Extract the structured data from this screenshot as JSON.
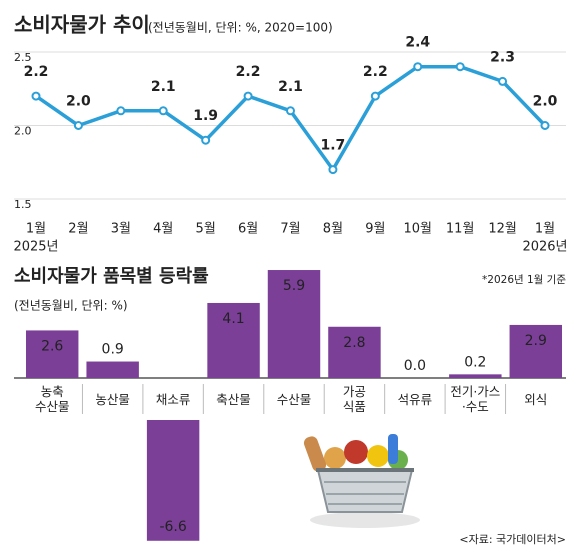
{
  "chart_data": [
    {
      "type": "line",
      "title": "소비자물가 추이",
      "subtitle": "(전년동월비, 단위: %, 2020=100)",
      "categories": [
        "1월",
        "2월",
        "3월",
        "4월",
        "5월",
        "6월",
        "7월",
        "8월",
        "9월",
        "10월",
        "11월",
        "12월",
        "1월"
      ],
      "year_labels": [
        "2025년",
        null,
        null,
        null,
        null,
        null,
        null,
        null,
        null,
        null,
        null,
        null,
        "2026년"
      ],
      "values": [
        2.2,
        2.0,
        2.1,
        2.1,
        1.9,
        2.2,
        2.1,
        1.7,
        2.2,
        2.4,
        2.4,
        2.3,
        2.0
      ],
      "value_labels": [
        "2.2",
        "2.0",
        null,
        "2.1",
        "1.9",
        "2.2",
        "2.1",
        "1.7",
        "2.2",
        "2.4",
        null,
        "2.3",
        "2.0"
      ],
      "color": "#2a9fd8",
      "ylim": [
        1.5,
        2.5
      ],
      "yticks": [
        1.5,
        {
          "value": 2,
          "label": "2.0"
        },
        2.5
      ],
      "grid": true
    },
    {
      "type": "bar",
      "title": "소비자물가 품목별 등락률",
      "subtitle": "(전년동월비, 단위: %)",
      "note": "*2026년 1월 기준",
      "categories": [
        "농축\n수산물",
        "농산물",
        "채소류",
        "축산물",
        "수산물",
        "가공\n식품",
        "석유류",
        "전기·가스\n·수도",
        "외식"
      ],
      "values": [
        2.6,
        0.9,
        -6.6,
        4.1,
        5.9,
        2.8,
        0.0,
        0.2,
        2.9
      ],
      "value_labels": [
        "2.6",
        "0.9",
        "-6.6",
        "4.1",
        "5.9",
        "2.8",
        "0.0",
        "0.2",
        "2.9"
      ],
      "color": "#7b3f98",
      "source": "<자료: 국가데이터처>"
    }
  ]
}
